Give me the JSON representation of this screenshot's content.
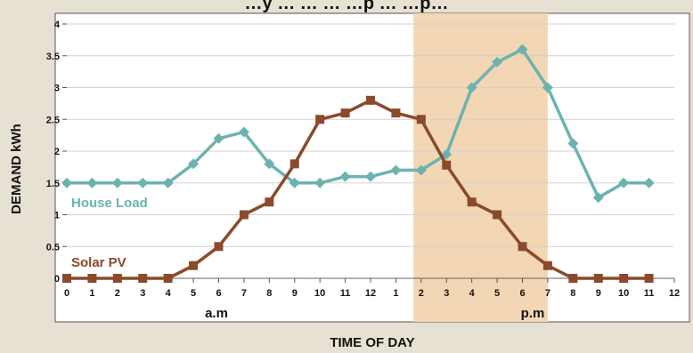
{
  "chart_data": {
    "type": "line",
    "title": "…y … … … …p … …p…",
    "xlabel": "TIME OF DAY",
    "ylabel": "DEMAND kWh",
    "ylim": [
      0,
      4
    ],
    "y_ticks": [
      "0",
      "0.5",
      "1",
      "1.5",
      "2",
      "2.5",
      "3",
      "3.5",
      "4"
    ],
    "x_tick_labels": [
      "0",
      "1",
      "2",
      "3",
      "4",
      "5",
      "6",
      "7",
      "8",
      "9",
      "10",
      "11",
      "12",
      "1",
      "2",
      "3",
      "4",
      "5",
      "6",
      "7",
      "8",
      "9",
      "10",
      "11",
      "12"
    ],
    "period_labels": [
      "a.m",
      "p.m"
    ],
    "highlight_band": {
      "from_hour": 13.7,
      "to_hour": 19
    },
    "grid": true,
    "series": [
      {
        "name": "House Load",
        "color": "#6cb3b0",
        "marker": "diamond",
        "x": [
          0,
          1,
          2,
          3,
          4,
          5,
          6,
          7,
          8,
          9,
          10,
          11,
          12,
          13,
          14,
          15,
          16,
          17,
          18,
          19,
          20,
          21,
          22,
          23
        ],
        "values": [
          1.5,
          1.5,
          1.5,
          1.5,
          1.5,
          1.8,
          2.2,
          2.3,
          1.8,
          1.5,
          1.5,
          1.6,
          1.6,
          1.7,
          1.7,
          1.95,
          3.0,
          3.4,
          3.6,
          3.0,
          2.12,
          1.27,
          1.5,
          1.5
        ]
      },
      {
        "name": "Solar PV",
        "color": "#8a4a2b",
        "marker": "square",
        "x": [
          0,
          1,
          2,
          3,
          4,
          5,
          6,
          7,
          8,
          9,
          10,
          11,
          12,
          13,
          14,
          15,
          16,
          17,
          18,
          19,
          20,
          21,
          22,
          23
        ],
        "values": [
          0,
          0,
          0,
          0,
          0,
          0.2,
          0.5,
          1.0,
          1.2,
          1.8,
          2.5,
          2.6,
          2.8,
          2.6,
          2.5,
          1.78,
          1.2,
          1.0,
          0.5,
          0.2,
          0,
          0,
          0,
          0
        ]
      }
    ]
  }
}
